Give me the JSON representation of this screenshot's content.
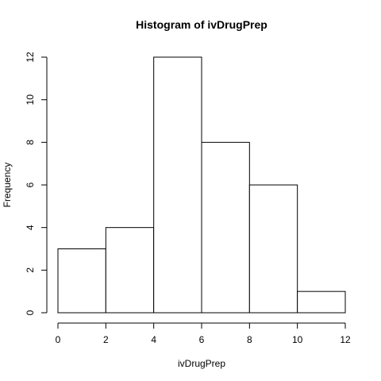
{
  "chart_data": {
    "type": "bar",
    "title": "Histogram of ivDrugPrep",
    "xlabel": "ivDrugPrep",
    "ylabel": "Frequency",
    "bins": [
      {
        "from": 0,
        "to": 2,
        "count": 3
      },
      {
        "from": 2,
        "to": 4,
        "count": 4
      },
      {
        "from": 4,
        "to": 6,
        "count": 12
      },
      {
        "from": 6,
        "to": 8,
        "count": 8
      },
      {
        "from": 8,
        "to": 10,
        "count": 6
      },
      {
        "from": 10,
        "to": 12,
        "count": 1
      }
    ],
    "xlim": [
      0,
      12
    ],
    "ylim": [
      0,
      12
    ],
    "xticks": [
      0,
      2,
      4,
      6,
      8,
      10,
      12
    ],
    "yticks": [
      0,
      2,
      4,
      6,
      8,
      10,
      12
    ],
    "grid": false,
    "legend": "none"
  }
}
